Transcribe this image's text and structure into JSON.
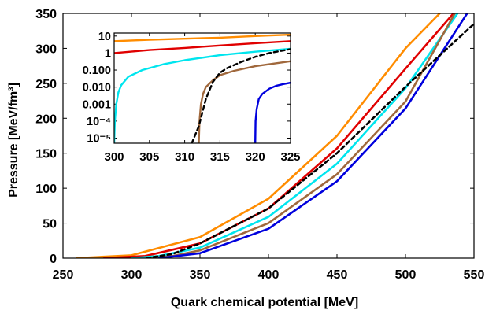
{
  "chart_data": [
    {
      "type": "line",
      "xlabel": "Quark chemical potential [MeV]",
      "ylabel": "Pressure [MeV/fm³]",
      "xlim": [
        250,
        550
      ],
      "ylim": [
        0,
        350
      ],
      "xticks": [
        "250",
        "300",
        "350",
        "400",
        "450",
        "500",
        "550"
      ],
      "yticks": [
        "0",
        "50",
        "100",
        "150",
        "200",
        "250",
        "300",
        "350"
      ],
      "series": [
        {
          "color": "#ff8c00",
          "dash": "solid",
          "x": [
            260,
            300,
            350,
            400,
            450,
            500,
            525
          ],
          "y": [
            0,
            4,
            30,
            85,
            175,
            300,
            350
          ]
        },
        {
          "color": "#e00000",
          "dash": "solid",
          "x": [
            280,
            310,
            350,
            400,
            450,
            500,
            535
          ],
          "y": [
            0,
            3,
            21,
            71,
            157,
            271,
            350
          ]
        },
        {
          "color": "#00e5ee",
          "dash": "solid",
          "x": [
            300,
            320,
            350,
            400,
            450,
            500,
            538
          ],
          "y": [
            0,
            3,
            15,
            59,
            135,
            243,
            350
          ]
        },
        {
          "color": "#a0683c",
          "dash": "solid",
          "x": [
            312,
            330,
            350,
            400,
            450,
            500,
            536
          ],
          "y": [
            0,
            3,
            11,
            50,
            120,
            224,
            350
          ]
        },
        {
          "color": "#0000dd",
          "dash": "solid",
          "x": [
            320,
            350,
            400,
            450,
            500,
            545
          ],
          "y": [
            0,
            7,
            42,
            110,
            214,
            350
          ]
        },
        {
          "color": "#000000",
          "dash": "dashed",
          "x": [
            311,
            330,
            350,
            400,
            450,
            500,
            550
          ],
          "y": [
            0,
            6,
            21,
            71,
            150,
            245,
            335
          ]
        }
      ]
    },
    {
      "type": "line",
      "xlim": [
        300,
        325
      ],
      "yscale": "log",
      "ylim": [
        5e-06,
        15
      ],
      "xticks": [
        "300",
        "305",
        "310",
        "315",
        "320",
        "325"
      ],
      "yticks": [
        "10",
        "1",
        "0.100",
        "0.010",
        "0.001",
        "10⁻⁴",
        "10⁻⁵"
      ],
      "series": [
        {
          "color": "#ff8c00",
          "dash": "solid",
          "x": [
            300,
            305,
            310,
            315,
            320,
            325
          ],
          "y": [
            5,
            6,
            7,
            8,
            10,
            12
          ]
        },
        {
          "color": "#e00000",
          "dash": "solid",
          "x": [
            300,
            305,
            310,
            315,
            320,
            325
          ],
          "y": [
            1,
            1.5,
            2,
            2.8,
            3.8,
            5
          ]
        },
        {
          "color": "#00e5ee",
          "dash": "solid",
          "x": [
            300,
            300.1,
            300.3,
            300.6,
            301,
            302,
            304,
            307,
            310,
            315,
            320,
            325
          ],
          "y": [
            5e-06,
            0.0001,
            0.001,
            0.005,
            0.013,
            0.04,
            0.1,
            0.22,
            0.38,
            0.75,
            1.2,
            1.8
          ]
        },
        {
          "color": "#a0683c",
          "dash": "solid",
          "x": [
            312,
            312.1,
            312.3,
            312.6,
            313,
            314,
            315,
            317,
            320,
            325
          ],
          "y": [
            5e-06,
            0.0001,
            0.001,
            0.004,
            0.01,
            0.025,
            0.05,
            0.09,
            0.17,
            0.33
          ]
        },
        {
          "color": "#0000dd",
          "dash": "solid",
          "x": [
            320,
            320.05,
            320.2,
            320.5,
            321,
            322,
            323,
            324,
            325
          ],
          "y": [
            5e-06,
            0.0001,
            0.0005,
            0.002,
            0.004,
            0.008,
            0.012,
            0.015,
            0.018
          ]
        },
        {
          "color": "#000000",
          "dash": "dashed",
          "x": [
            311,
            312,
            313,
            314,
            315,
            316,
            318,
            320,
            322,
            325
          ],
          "y": [
            5e-06,
            5e-05,
            0.002,
            0.02,
            0.07,
            0.13,
            0.3,
            0.6,
            1,
            1.7
          ]
        }
      ]
    }
  ]
}
